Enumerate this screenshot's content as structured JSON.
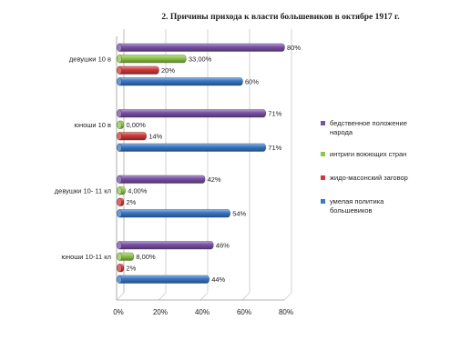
{
  "chart_data": {
    "type": "bar",
    "orientation": "horizontal",
    "title": "2. Причины прихода к власти большевиков в октябре 1917 г.",
    "categories": [
      "девушки 10 в",
      "юноши 10 в",
      "девушки 10- 11 кл",
      "юноши 10-11 кл"
    ],
    "series": [
      {
        "name": "бедственное положение народа",
        "color": "#7b52a8",
        "values": [
          80,
          71,
          42,
          46
        ],
        "labels": [
          "80%",
          "71%",
          "42%",
          "46%"
        ]
      },
      {
        "name": "интриги воюющих стран",
        "color": "#8fc54a",
        "values": [
          33,
          0,
          4,
          8
        ],
        "labels": [
          "33,00%",
          "0,00%",
          "4,00%",
          "8,00%"
        ]
      },
      {
        "name": "жидо-масонский заговор",
        "color": "#cf3b3b",
        "values": [
          20,
          14,
          2,
          2
        ],
        "labels": [
          "20%",
          "14%",
          "2%",
          "2%"
        ]
      },
      {
        "name": "умелая политика большевиков",
        "color": "#3b78c8",
        "values": [
          60,
          71,
          54,
          44
        ],
        "labels": [
          "60%",
          "71%",
          "54%",
          "44%"
        ]
      }
    ],
    "xlim": [
      0,
      80
    ],
    "xticks": [
      "0%",
      "20%",
      "40%",
      "60%",
      "80%"
    ],
    "legend_position": "right",
    "style": "3d-cylinder"
  }
}
